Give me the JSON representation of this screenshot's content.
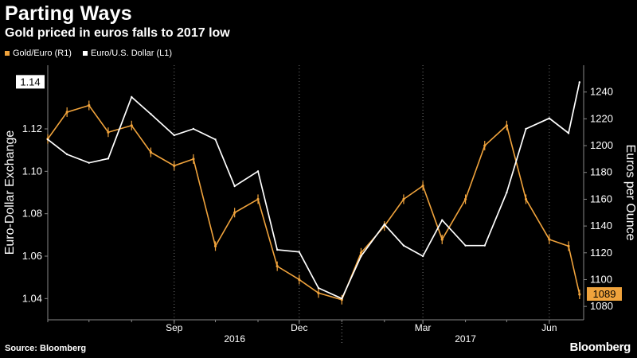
{
  "header": {
    "title": "Parting Ways",
    "subtitle": "Gold priced in euros falls to 2017 low"
  },
  "footer": {
    "source": "Source: Bloomberg",
    "brand": "Bloomberg"
  },
  "colors": {
    "gold": "#f0a33c",
    "eur": "#ffffff",
    "background": "#000000",
    "grid": "#777777"
  },
  "chart_data": {
    "type": "line",
    "title": "Parting Ways",
    "subtitle": "Gold priced in euros falls to 2017 low",
    "x": [
      "2016-06-01",
      "2016-06-15",
      "2016-07-01",
      "2016-07-15",
      "2016-08-01",
      "2016-08-15",
      "2016-09-01",
      "2016-09-15",
      "2016-10-01",
      "2016-10-15",
      "2016-11-01",
      "2016-11-15",
      "2016-12-01",
      "2016-12-15",
      "2017-01-01",
      "2017-01-15",
      "2017-02-01",
      "2017-02-15",
      "2017-03-01",
      "2017-03-15",
      "2017-04-01",
      "2017-04-15",
      "2017-05-01",
      "2017-05-15",
      "2017-06-01",
      "2017-06-15",
      "2017-06-23"
    ],
    "xlim": [
      "2016-06-01",
      "2017-06-26"
    ],
    "x_tick_labels": [
      "Sep",
      "Dec",
      "Mar",
      "Jun"
    ],
    "x_tick_dates": [
      "2016-09-01",
      "2016-12-01",
      "2017-03-01",
      "2017-06-01"
    ],
    "year_labels": [
      "2016",
      "2017"
    ],
    "year_label_dates": [
      "2016-10-15",
      "2017-04-01"
    ],
    "year_boundary": "2017-01-01",
    "series": [
      {
        "name": "Euro/U.S. Dollar",
        "legend": "Euro/U.S. Dollar (L1)",
        "axis": "left",
        "values": [
          1.115,
          1.108,
          1.104,
          1.106,
          1.135,
          1.127,
          1.117,
          1.12,
          1.115,
          1.093,
          1.1,
          1.063,
          1.062,
          1.045,
          1.04,
          1.06,
          1.075,
          1.065,
          1.06,
          1.077,
          1.065,
          1.065,
          1.09,
          1.12,
          1.125,
          1.118,
          1.142
        ],
        "last_value_label": "1.14"
      },
      {
        "name": "Gold/Euro",
        "legend": "Gold/Euro (R1)",
        "axis": "right",
        "values": [
          1205,
          1225,
          1230,
          1210,
          1215,
          1195,
          1185,
          1190,
          1125,
          1150,
          1160,
          1110,
          1100,
          1090,
          1085,
          1120,
          1140,
          1160,
          1170,
          1130,
          1160,
          1200,
          1215,
          1160,
          1130,
          1125,
          1089
        ],
        "last_value_label": "1089"
      }
    ],
    "y_left": {
      "label": "Euro-Dollar Exchange",
      "ticks": [
        1.04,
        1.06,
        1.08,
        1.1,
        1.12
      ],
      "ylim": [
        1.03,
        1.15
      ]
    },
    "y_right": {
      "label": "Euros per Ounce",
      "ticks": [
        1080,
        1100,
        1120,
        1140,
        1160,
        1180,
        1200,
        1220,
        1240
      ],
      "ylim": [
        1070,
        1260
      ]
    },
    "grid": "dotted vertical",
    "legend_position": "top-left"
  }
}
